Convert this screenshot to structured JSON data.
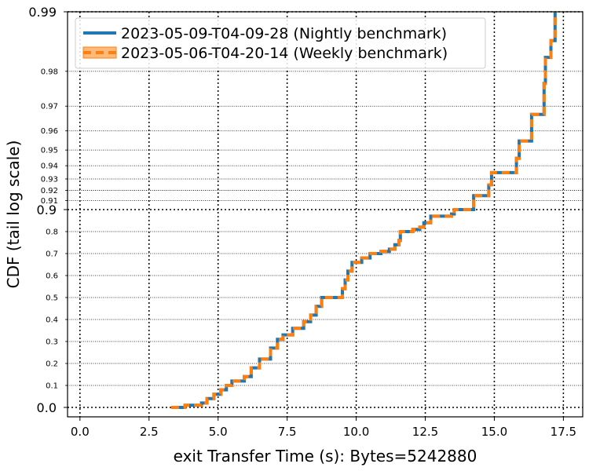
{
  "chart_data": {
    "type": "line",
    "xlabel": "exit Transfer Time (s): Bytes=5242880",
    "ylabel": "CDF (tail log scale)",
    "xlim": [
      -0.45,
      18.2
    ],
    "x_ticks": [
      "0.0",
      "2.5",
      "5.0",
      "7.5",
      "10.0",
      "12.5",
      "15.0",
      "17.5"
    ],
    "y_major_ticks": [
      "0.0",
      "0.9",
      "0.99"
    ],
    "y_minor_ticks": [
      "0.1",
      "0.2",
      "0.3",
      "0.4",
      "0.5",
      "0.6",
      "0.7",
      "0.8",
      "0.91",
      "0.92",
      "0.93",
      "0.94",
      "0.95",
      "0.96",
      "0.97",
      "0.98"
    ],
    "y_scale": "tail-log",
    "grid": true,
    "legend_position": "top-left",
    "series": [
      {
        "name": "2023-05-09-T04-09-28 (Nightly benchmark)",
        "color": "#1f77b4",
        "style": "solid",
        "x": [
          3.3,
          3.8,
          4.4,
          4.6,
          4.85,
          5.1,
          5.3,
          5.5,
          5.95,
          6.2,
          6.5,
          6.9,
          7.15,
          7.35,
          7.7,
          8.1,
          8.35,
          8.55,
          8.75,
          9.5,
          9.6,
          9.7,
          9.85,
          10.2,
          10.5,
          10.9,
          11.2,
          11.4,
          11.55,
          11.6,
          12.05,
          12.3,
          12.45,
          12.7,
          13.45,
          13.55,
          14.25,
          14.8,
          14.9,
          15.8,
          15.9,
          16.35,
          16.8,
          16.85,
          17.05,
          17.2
        ],
        "y": [
          0.0,
          0.01,
          0.02,
          0.04,
          0.06,
          0.08,
          0.1,
          0.12,
          0.14,
          0.18,
          0.22,
          0.27,
          0.31,
          0.33,
          0.36,
          0.39,
          0.42,
          0.46,
          0.5,
          0.54,
          0.58,
          0.62,
          0.66,
          0.68,
          0.7,
          0.71,
          0.72,
          0.74,
          0.76,
          0.8,
          0.81,
          0.82,
          0.84,
          0.87,
          0.88,
          0.9,
          0.915,
          0.925,
          0.935,
          0.945,
          0.955,
          0.967,
          0.977,
          0.983,
          0.986,
          0.99
        ]
      },
      {
        "name": "2023-05-06-T04-20-14 (Weekly benchmark)",
        "color": "#ff7f0e",
        "style": "dashed",
        "x": [
          3.3,
          3.8,
          4.4,
          4.6,
          4.85,
          5.1,
          5.3,
          5.5,
          5.95,
          6.2,
          6.5,
          6.9,
          7.15,
          7.35,
          7.7,
          8.1,
          8.35,
          8.55,
          8.75,
          9.5,
          9.6,
          9.7,
          9.85,
          10.2,
          10.5,
          10.9,
          11.2,
          11.4,
          11.55,
          11.6,
          12.05,
          12.3,
          12.45,
          12.7,
          13.45,
          13.55,
          14.25,
          14.8,
          14.9,
          15.8,
          15.9,
          16.35,
          16.8,
          16.85,
          17.05,
          17.2
        ],
        "y": [
          0.0,
          0.01,
          0.02,
          0.04,
          0.06,
          0.08,
          0.1,
          0.12,
          0.14,
          0.18,
          0.22,
          0.27,
          0.31,
          0.33,
          0.36,
          0.39,
          0.42,
          0.46,
          0.5,
          0.54,
          0.58,
          0.62,
          0.66,
          0.68,
          0.7,
          0.71,
          0.72,
          0.74,
          0.76,
          0.8,
          0.81,
          0.82,
          0.84,
          0.87,
          0.88,
          0.9,
          0.915,
          0.925,
          0.935,
          0.945,
          0.955,
          0.967,
          0.977,
          0.983,
          0.986,
          0.99
        ]
      }
    ]
  }
}
